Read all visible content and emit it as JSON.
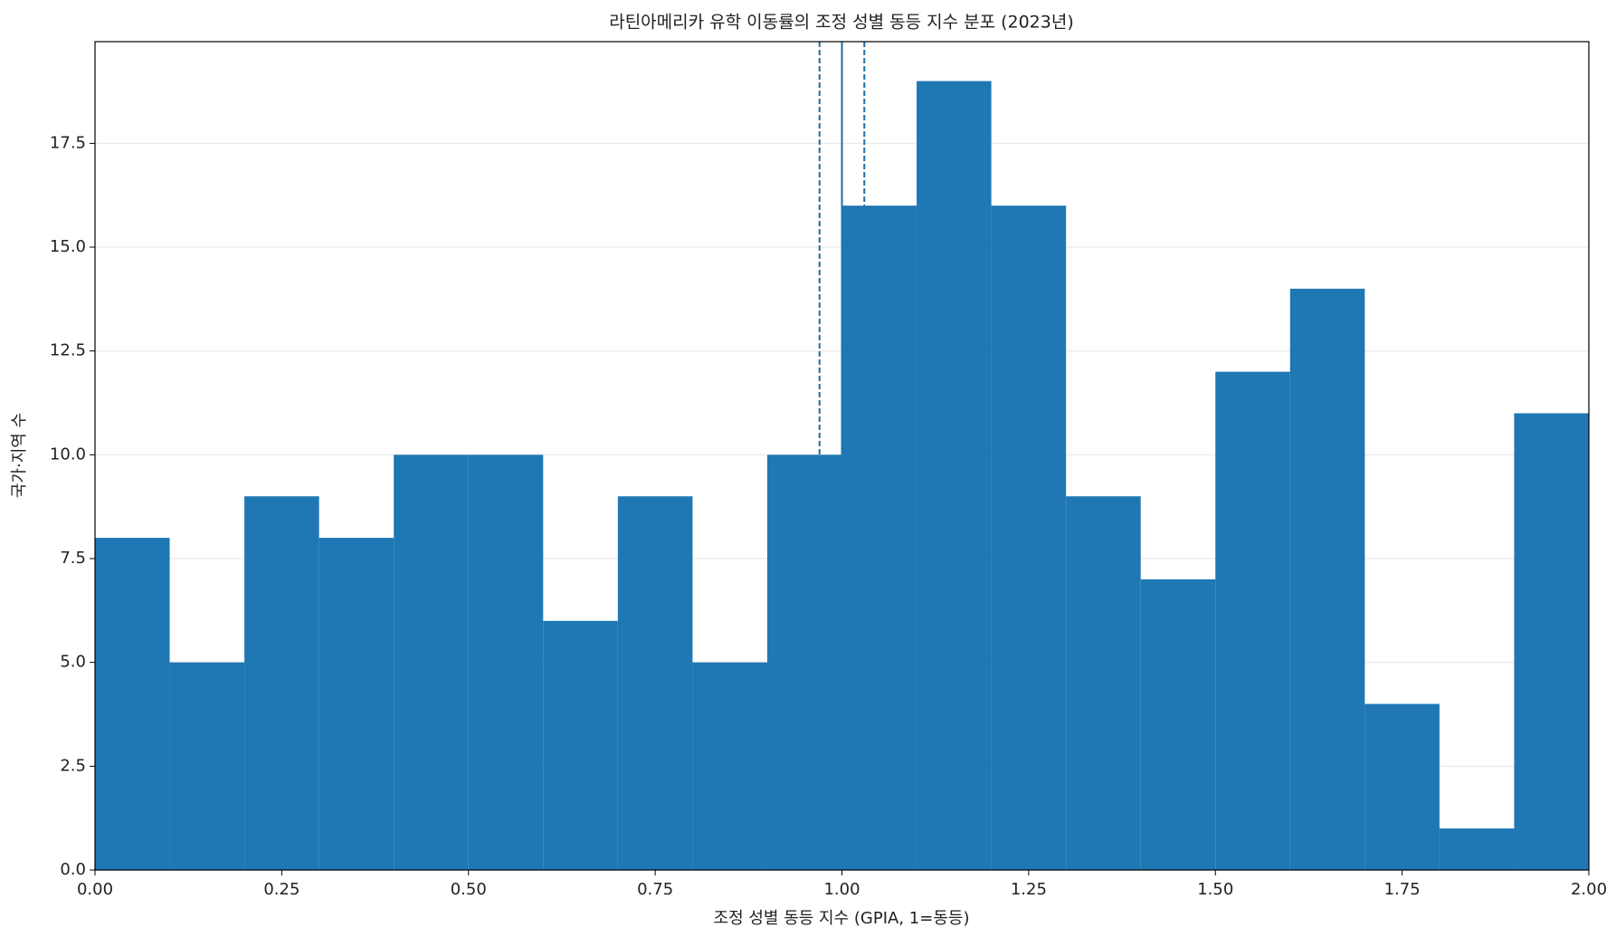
{
  "chart_data": {
    "type": "histogram",
    "title": "라틴아메리카 유학 이동률의 조정 성별 동등 지수 분포 (2023년)",
    "x_label": "조정 성별 동등 지수 (GPIA, 1=동등)",
    "y_label": "국가·지역 수",
    "bins": [
      0,
      0.1,
      0.2,
      0.3,
      0.4,
      0.5,
      0.6,
      0.7,
      0.8,
      0.9,
      1.0,
      1.1,
      1.2,
      1.3,
      1.4,
      1.5,
      1.6,
      1.7,
      1.8,
      1.9,
      2.0
    ],
    "values": [
      8,
      5,
      9,
      8,
      10,
      10,
      6,
      9,
      5,
      10,
      16,
      19,
      16,
      9,
      7,
      12,
      14,
      4,
      1,
      11
    ],
    "color": "#1f77b4",
    "reference_lines": [
      {
        "x": 0.97,
        "style": "dashed",
        "color": "#1f6fa3"
      },
      {
        "x": 1.0,
        "style": "solid",
        "color": "#1f6fa3"
      },
      {
        "x": 1.03,
        "style": "dashed",
        "color": "#1f6fa3"
      }
    ],
    "xlim": [
      0,
      2
    ],
    "ylim": [
      0,
      19.95
    ],
    "xticks": [
      {
        "value": 0,
        "label": "0.00"
      },
      {
        "value": 0.25,
        "label": "0.25"
      },
      {
        "value": 0.5,
        "label": "0.50"
      },
      {
        "value": 0.75,
        "label": "0.75"
      },
      {
        "value": 1,
        "label": "1.00"
      },
      {
        "value": 1.25,
        "label": "1.25"
      },
      {
        "value": 1.5,
        "label": "1.50"
      },
      {
        "value": 1.75,
        "label": "1.75"
      },
      {
        "value": 2,
        "label": "2.00"
      }
    ],
    "yticks": [
      {
        "value": 0,
        "label": "0.0"
      },
      2.5,
      {
        "value": 5,
        "label": "5.0"
      },
      7.5,
      {
        "value": 10,
        "label": "10.0"
      },
      12.5,
      {
        "value": 15,
        "label": "15.0"
      },
      17.5
    ],
    "grid": true
  }
}
